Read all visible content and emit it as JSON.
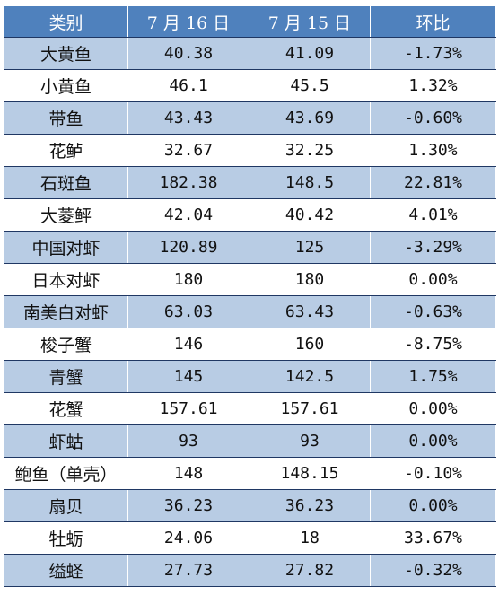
{
  "table": {
    "headers": [
      "类别",
      "7 月 16 日",
      "7 月 15 日",
      "环比"
    ],
    "rows": [
      {
        "name": "大黄鱼",
        "jul16": "40.38",
        "jul15": "41.09",
        "change": "-1.73%"
      },
      {
        "name": "小黄鱼",
        "jul16": "46.1",
        "jul15": "45.5",
        "change": "1.32%"
      },
      {
        "name": "带鱼",
        "jul16": "43.43",
        "jul15": "43.69",
        "change": "-0.60%"
      },
      {
        "name": "花鲈",
        "jul16": "32.67",
        "jul15": "32.25",
        "change": "1.30%"
      },
      {
        "name": "石斑鱼",
        "jul16": "182.38",
        "jul15": "148.5",
        "change": "22.81%"
      },
      {
        "name": "大菱鲆",
        "jul16": "42.04",
        "jul15": "40.42",
        "change": "4.01%"
      },
      {
        "name": "中国对虾",
        "jul16": "120.89",
        "jul15": "125",
        "change": "-3.29%"
      },
      {
        "name": "日本对虾",
        "jul16": "180",
        "jul15": "180",
        "change": "0.00%"
      },
      {
        "name": "南美白对虾",
        "jul16": "63.03",
        "jul15": "63.43",
        "change": "-0.63%"
      },
      {
        "name": "梭子蟹",
        "jul16": "146",
        "jul15": "160",
        "change": "-8.75%"
      },
      {
        "name": "青蟹",
        "jul16": "145",
        "jul15": "142.5",
        "change": "1.75%"
      },
      {
        "name": "花蟹",
        "jul16": "157.61",
        "jul15": "157.61",
        "change": "0.00%"
      },
      {
        "name": "虾蛄",
        "jul16": "93",
        "jul15": "93",
        "change": "0.00%"
      },
      {
        "name": "鲍鱼（单壳）",
        "jul16": "148",
        "jul15": "148.15",
        "change": "-0.10%"
      },
      {
        "name": "扇贝",
        "jul16": "36.23",
        "jul15": "36.23",
        "change": "0.00%"
      },
      {
        "name": "牡蛎",
        "jul16": "24.06",
        "jul15": "18",
        "change": "33.67%"
      },
      {
        "name": "缢蛏",
        "jul16": "27.73",
        "jul15": "27.82",
        "change": "-0.32%"
      }
    ]
  },
  "colors": {
    "header_bg": "#4f81bd",
    "row_alt_bg": "#b8cce4",
    "row_bg": "#ffffff"
  }
}
